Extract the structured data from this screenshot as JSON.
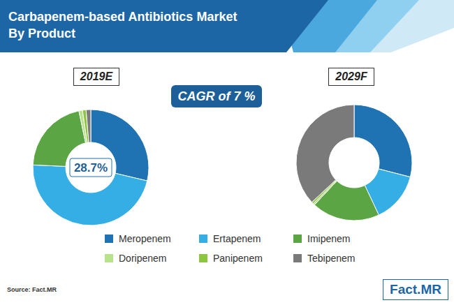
{
  "title": "Carbapenem-based Antibiotics Market By Product",
  "annotation": "CAGR of 7 %",
  "source": "Source: Fact.MR",
  "logo": "Fact.MR",
  "chart_data": [
    {
      "type": "pie",
      "title": "2019E",
      "categories": [
        "Meropenem",
        "Ertapenem",
        "Imipenem",
        "Doripenem",
        "Panipenem",
        "Tebipenem"
      ],
      "values": [
        28.7,
        47,
        21,
        1,
        1,
        1.3
      ],
      "value_labels": [
        "28.7%",
        null,
        null,
        null,
        null,
        null
      ],
      "colors": [
        "#1f73b3",
        "#35aee6",
        "#5ba544",
        "#b8e28c",
        "#8cc63f",
        "#7a7a7a"
      ],
      "legend": "bottom"
    },
    {
      "type": "pie",
      "title": "2029F",
      "categories": [
        "Meropenem",
        "Ertapenem",
        "Imipenem",
        "Doripenem",
        "Panipenem",
        "Tebipenem"
      ],
      "values": [
        29,
        14,
        19,
        0.5,
        0.5,
        37
      ],
      "colors": [
        "#1f73b3",
        "#35aee6",
        "#5ba544",
        "#b8e28c",
        "#8cc63f",
        "#7a7a7a"
      ],
      "legend": "bottom"
    }
  ]
}
